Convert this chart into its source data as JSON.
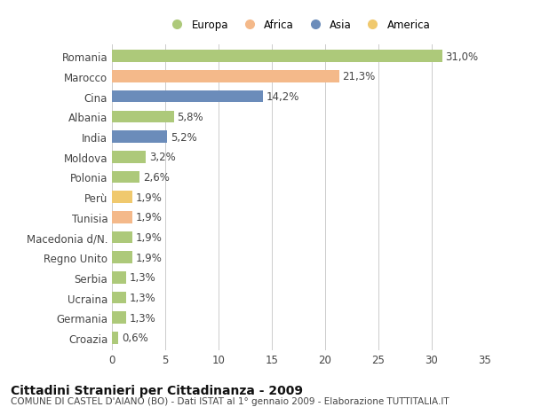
{
  "countries": [
    "Romania",
    "Marocco",
    "Cina",
    "Albania",
    "India",
    "Moldova",
    "Polonia",
    "Perù",
    "Tunisia",
    "Macedonia d/N.",
    "Regno Unito",
    "Serbia",
    "Ucraina",
    "Germania",
    "Croazia"
  ],
  "values": [
    31.0,
    21.3,
    14.2,
    5.8,
    5.2,
    3.2,
    2.6,
    1.9,
    1.9,
    1.9,
    1.9,
    1.3,
    1.3,
    1.3,
    0.6
  ],
  "labels": [
    "31,0%",
    "21,3%",
    "14,2%",
    "5,8%",
    "5,2%",
    "3,2%",
    "2,6%",
    "1,9%",
    "1,9%",
    "1,9%",
    "1,9%",
    "1,3%",
    "1,3%",
    "1,3%",
    "0,6%"
  ],
  "colors": [
    "#adc97a",
    "#f4b98a",
    "#6b8cba",
    "#adc97a",
    "#6b8cba",
    "#adc97a",
    "#adc97a",
    "#f0c96e",
    "#f4b98a",
    "#adc97a",
    "#adc97a",
    "#adc97a",
    "#adc97a",
    "#adc97a",
    "#adc97a"
  ],
  "legend_labels": [
    "Europa",
    "Africa",
    "Asia",
    "America"
  ],
  "legend_colors": [
    "#adc97a",
    "#f4b98a",
    "#6b8cba",
    "#f0c96e"
  ],
  "title": "Cittadini Stranieri per Cittadinanza - 2009",
  "subtitle": "COMUNE DI CASTEL D'AIANO (BO) - Dati ISTAT al 1° gennaio 2009 - Elaborazione TUTTITALIA.IT",
  "xlim": [
    0,
    35
  ],
  "xticks": [
    0,
    5,
    10,
    15,
    20,
    25,
    30,
    35
  ],
  "background_color": "#ffffff",
  "plot_bg_color": "#ffffff",
  "grid_color": "#cccccc",
  "bar_height": 0.6,
  "text_color": "#444444",
  "label_fontsize": 8.5,
  "tick_fontsize": 8.5,
  "title_fontsize": 10,
  "subtitle_fontsize": 7.5
}
